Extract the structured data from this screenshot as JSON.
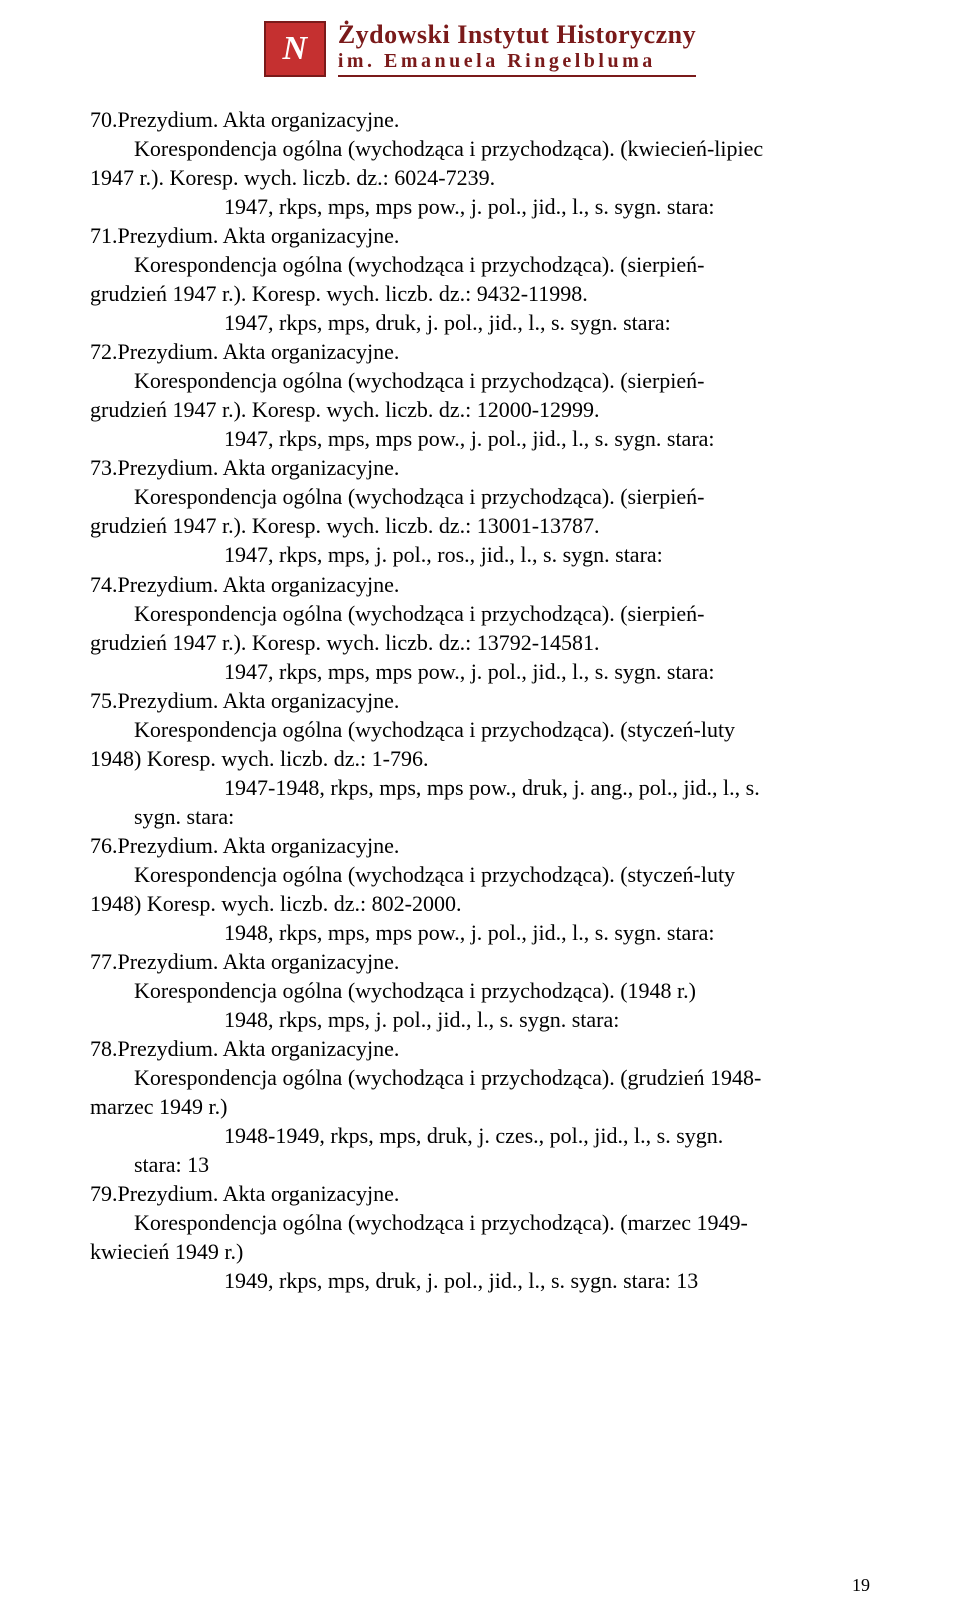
{
  "header": {
    "line1": "Żydowski Instytut Historyczny",
    "line2": "im. Emanuela Ringelbluma"
  },
  "entries": [
    {
      "num": "70.",
      "title": "Prezydium. Akta organizacyjne.",
      "desc1": "Korespondencja ogólna (wychodząca i przychodząca). (kwiecień-lipiec",
      "desc2": "1947 r.). Koresp. wych. liczb. dz.: 6024-7239.",
      "meta": "1947, rkps, mps, mps pow., j. pol., jid., l., s.  sygn. stara:"
    },
    {
      "num": "71.",
      "title": "Prezydium. Akta organizacyjne.",
      "desc1": "Korespondencja ogólna (wychodząca i przychodząca). (sierpień-",
      "desc2": "grudzień 1947 r.). Koresp. wych. liczb. dz.: 9432-11998.",
      "meta": "1947, rkps, mps, druk, j. pol., jid., l., s.  sygn. stara:"
    },
    {
      "num": "72.",
      "title": "Prezydium. Akta organizacyjne.",
      "desc1": "Korespondencja ogólna (wychodząca i przychodząca). (sierpień-",
      "desc2": "grudzień 1947 r.). Koresp. wych. liczb. dz.: 12000-12999.",
      "meta": "1947, rkps, mps, mps pow., j. pol., jid., l., s.  sygn. stara:"
    },
    {
      "num": "73.",
      "title": "Prezydium. Akta organizacyjne.",
      "desc1": "Korespondencja ogólna (wychodząca i przychodząca). (sierpień-",
      "desc2": "grudzień 1947 r.). Koresp. wych. liczb. dz.: 13001-13787.",
      "meta": "1947, rkps, mps, j. pol., ros., jid., l., s.  sygn. stara:"
    },
    {
      "num": "74.",
      "title": "Prezydium. Akta organizacyjne.",
      "desc1": "Korespondencja ogólna (wychodząca i przychodząca). (sierpień-",
      "desc2": "grudzień 1947 r.). Koresp. wych. liczb. dz.: 13792-14581.",
      "meta": "1947, rkps, mps, mps pow., j. pol., jid., l., s.  sygn. stara:"
    },
    {
      "num": "75.",
      "title": "Prezydium. Akta organizacyjne.",
      "desc1": "Korespondencja ogólna (wychodząca i przychodząca). (styczeń-luty",
      "desc2": "1948) Koresp. wych. liczb. dz.: 1-796.",
      "meta1": "1947-1948, rkps, mps, mps pow., druk, j. ang., pol., jid., l., s.",
      "meta2": "sygn. stara:"
    },
    {
      "num": "76.",
      "title": "Prezydium. Akta organizacyjne.",
      "desc1": "Korespondencja ogólna (wychodząca i przychodząca). (styczeń-luty",
      "desc2": "1948) Koresp. wych. liczb. dz.: 802-2000.",
      "meta": "1948, rkps, mps, mps pow., j. pol., jid., l., s.  sygn. stara:"
    },
    {
      "num": "77.",
      "title": "Prezydium. Akta organizacyjne.",
      "desc1": "Korespondencja ogólna (wychodząca i przychodząca). (1948 r.)",
      "meta": "1948, rkps, mps, j. pol., jid., l., s.   sygn. stara:"
    },
    {
      "num": "78.",
      "title": "Prezydium. Akta organizacyjne.",
      "desc1": "Korespondencja ogólna (wychodząca i przychodząca). (grudzień 1948-",
      "desc2": "marzec 1949 r.)",
      "meta1": "1948-1949, rkps, mps, druk, j. czes., pol., jid., l., s.  sygn.",
      "meta2": "stara: 13"
    },
    {
      "num": "79.",
      "title": "Prezydium. Akta organizacyjne.",
      "desc1": "Korespondencja ogólna (wychodząca i przychodząca). (marzec 1949-",
      "desc2": "kwiecień 1949 r.)",
      "meta": "1949, rkps, mps, druk, j. pol., jid., l., s.  sygn. stara: 13"
    }
  ],
  "page_number": "19"
}
